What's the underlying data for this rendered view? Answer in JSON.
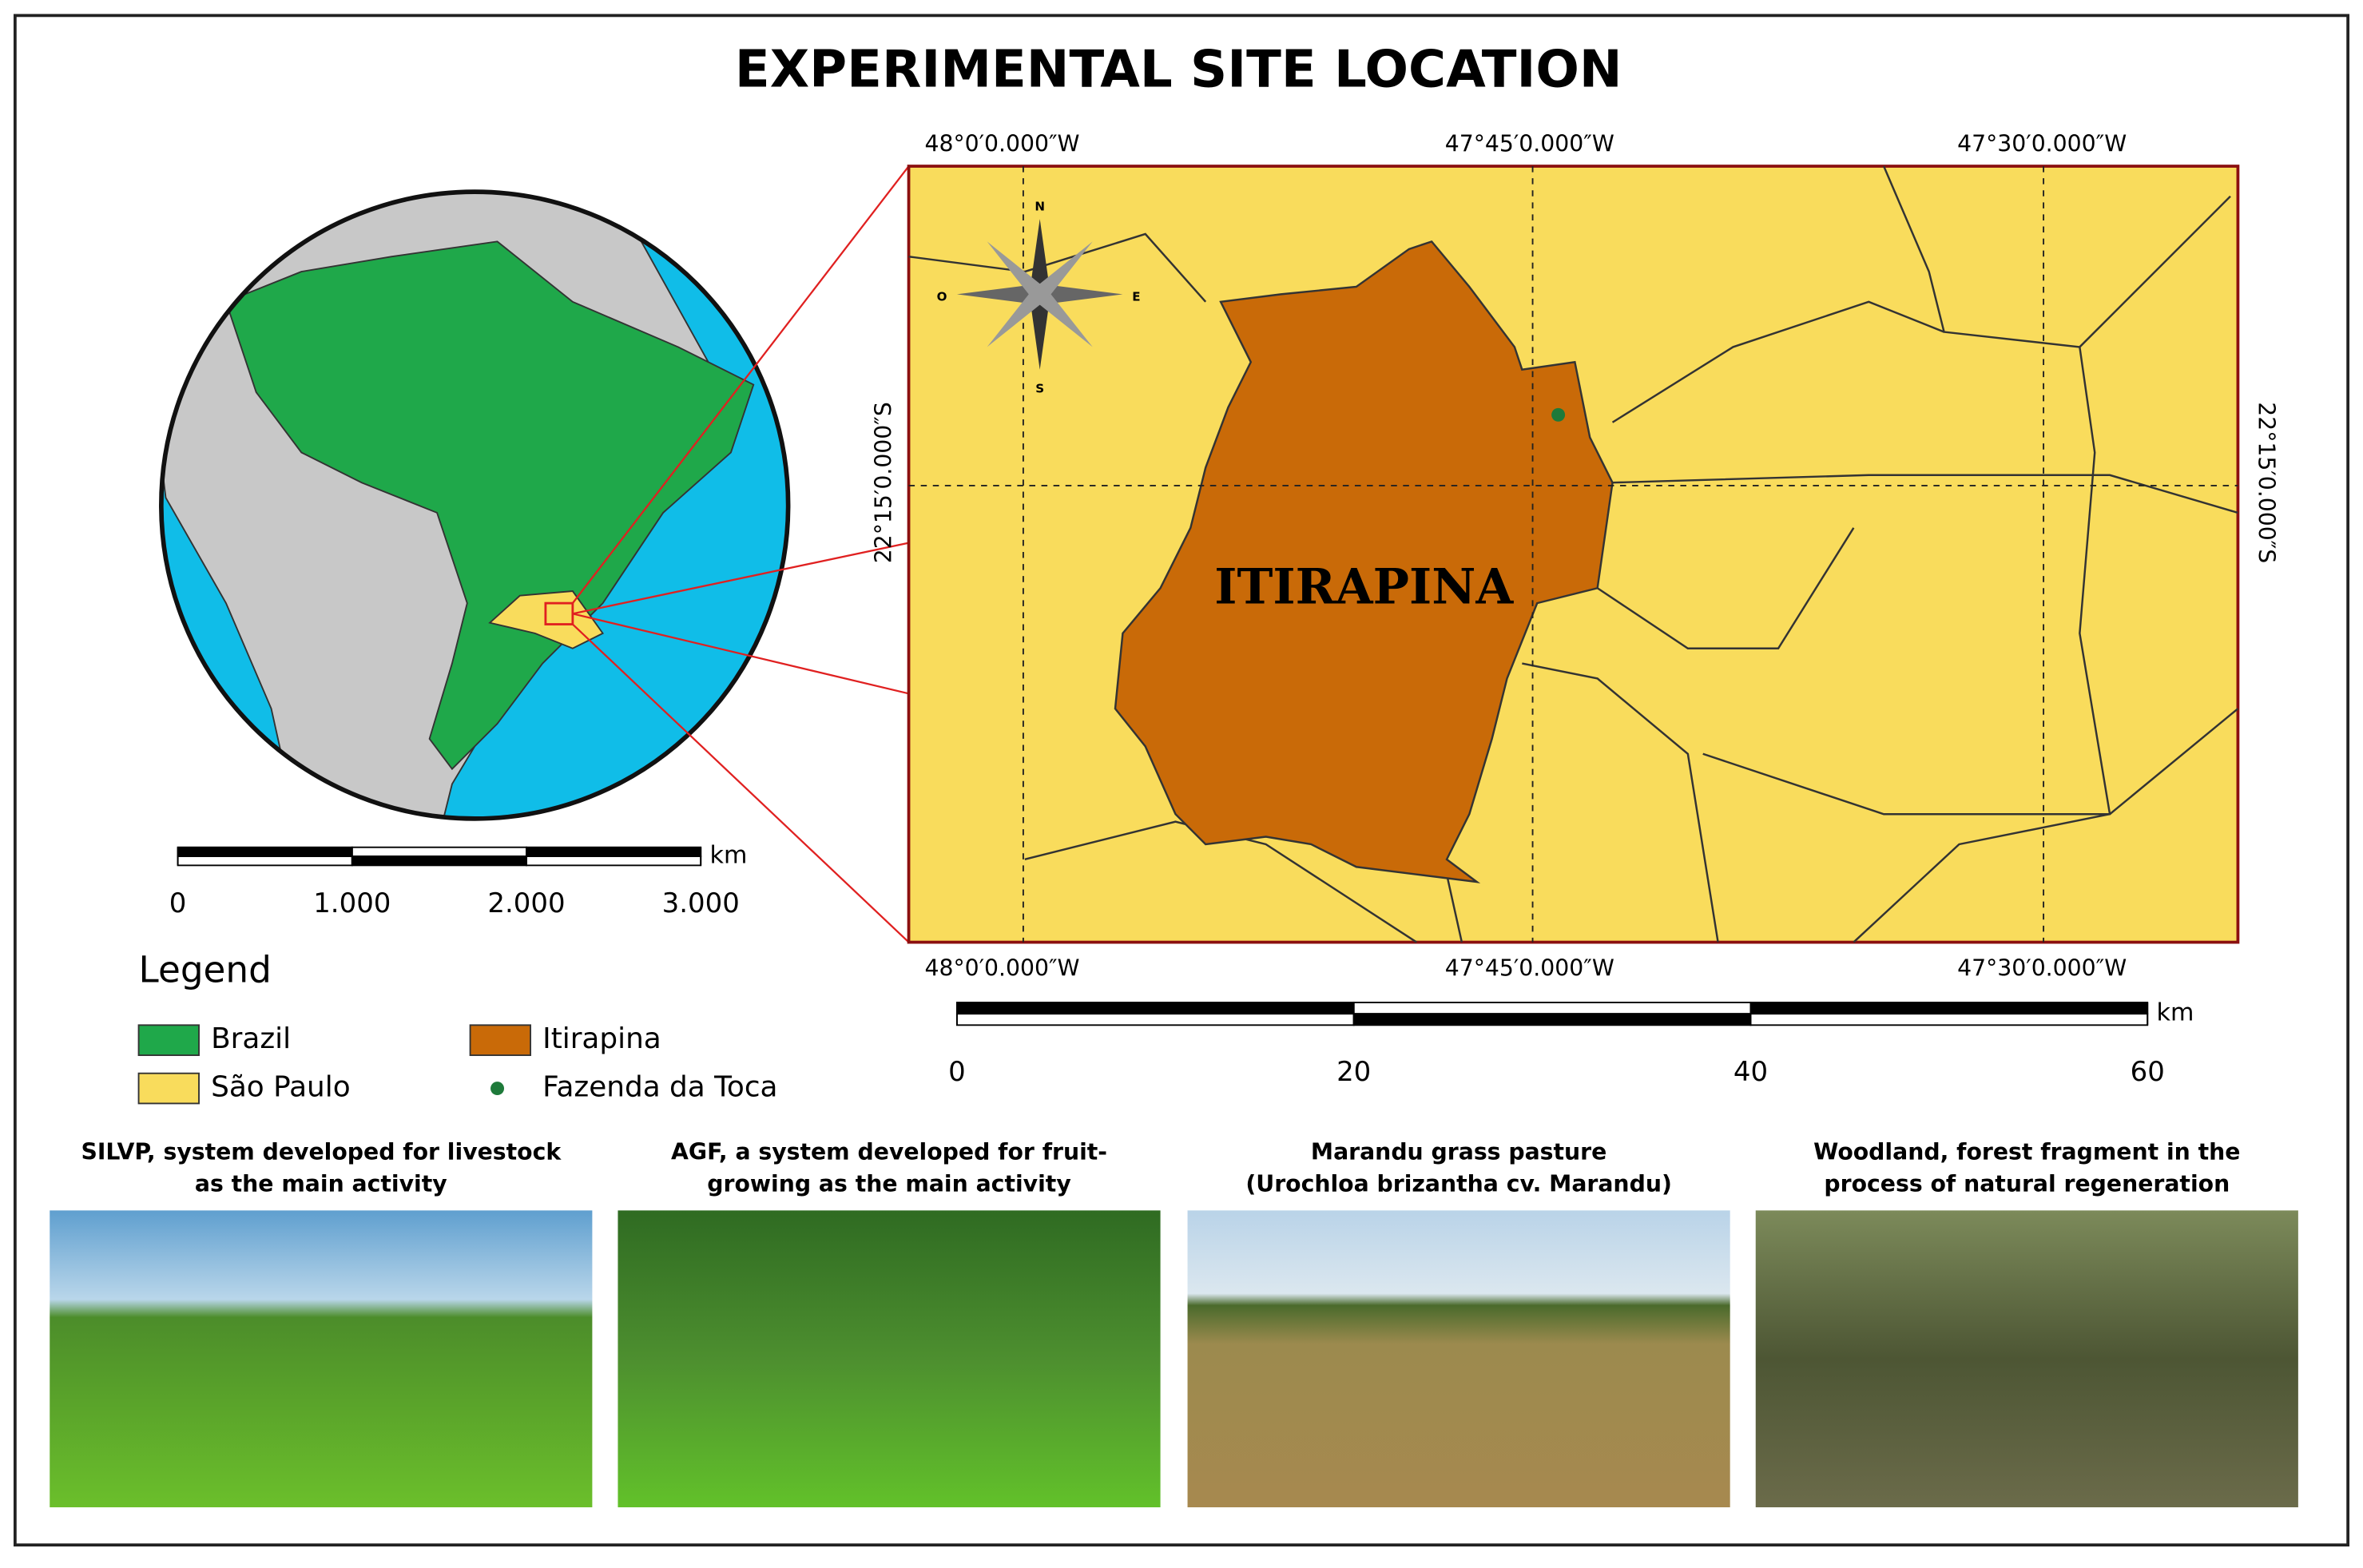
{
  "title": "EXPERIMENTAL SITE LOCATION",
  "globe_map": {
    "scale_bar": {
      "unit": "km",
      "ticks": [
        0,
        {
          "value": 1000,
          "label": "1.000"
        },
        {
          "value": 2000,
          "label": "2.000"
        },
        {
          "value": 3000,
          "label": "3.000"
        }
      ]
    }
  },
  "legend": {
    "title": "Legend",
    "items": [
      {
        "label": "Brazil",
        "color": "#1fa84a"
      },
      {
        "label": "Itirapina",
        "color": "#c96a08"
      },
      {
        "label": "São Paulo",
        "color": "#f9dc5c"
      },
      {
        "label": "Fazenda da Toca",
        "color": "#1e7a3a"
      }
    ]
  },
  "detail_map": {
    "label": "ITIRAPINA",
    "top_labels": [
      "48°0′0.000″W",
      "47°45′0.000″W",
      "47°30′0.000″W"
    ],
    "bottom_labels": [
      "48°0′0.000″W",
      "47°45′0.000″W",
      "47°30′0.000″W"
    ],
    "left_label": "22°15′0.000″S",
    "right_label": "22°15′0.000″S",
    "compass": [
      "N",
      "S",
      "E",
      "O"
    ],
    "scale_bar": {
      "unit": "km",
      "ticks": [
        0,
        20,
        40,
        60
      ]
    }
  },
  "photos": [
    {
      "caption_lines": [
        "SILVP, system developed for livestock",
        "as the main activity"
      ]
    },
    {
      "caption_lines": [
        "AGF, a system developed for fruit-",
        "growing as the main activity"
      ]
    },
    {
      "caption_lines": [
        "Marandu grass pasture",
        "(Urochloa brizantha cv. Marandu)"
      ]
    },
    {
      "caption_lines": [
        "Woodland, forest fragment in the",
        "process of natural regeneration"
      ]
    }
  ]
}
